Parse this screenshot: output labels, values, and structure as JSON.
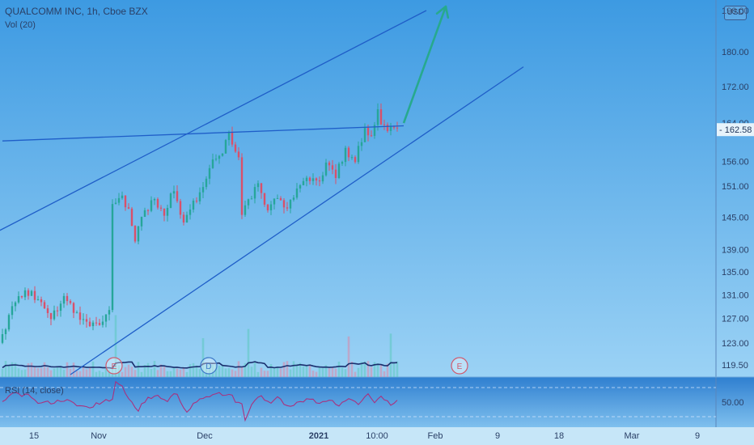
{
  "header": {
    "symbol_title": "QUALCOMM INC, 1h, Cboe BZX",
    "volume_label": "Vol (20)",
    "rsi_label": "RSI (14, close)",
    "currency_button": "USD"
  },
  "price_axis": {
    "ticks": [
      "190.00",
      "180.00",
      "172.00",
      "164.00",
      "156.00",
      "151.00",
      "145.00",
      "139.00",
      "135.00",
      "131.00",
      "127.00",
      "123.00",
      "119.50"
    ],
    "current_price_label": "162.58"
  },
  "rsi_axis": {
    "ticks": [
      "50.00"
    ]
  },
  "time_axis": {
    "ticks": [
      "15",
      "Nov",
      "Dec",
      "2021",
      "10:00",
      "Feb",
      "9",
      "18",
      "Mar",
      "9"
    ]
  },
  "event_markers": [
    "E",
    "D",
    "E"
  ],
  "colors": {
    "background_top": "#3d9ae2",
    "background_bottom": "#9bd2f5",
    "candle_up": "#26a69a",
    "candle_down": "#d9506a",
    "channel_line": "#1f5ec8",
    "projection_arrow": "#27a98e",
    "volume_ma": "#1a2f6e",
    "rsi_line": "#a8327f",
    "price_tag": "#e6f3fb"
  },
  "chart_data": {
    "type": "candlestick",
    "title": "QUALCOMM INC, 1h, Cboe BZX",
    "ylim": [
      118.5,
      190
    ],
    "y_scale": "log",
    "current_price": 162.58,
    "price_path": [
      {
        "t": 0,
        "p": 123.0
      },
      {
        "t": 4,
        "p": 128.5
      },
      {
        "t": 8,
        "p": 132.0
      },
      {
        "t": 12,
        "p": 130.0
      },
      {
        "t": 16,
        "p": 127.0
      },
      {
        "t": 20,
        "p": 130.5
      },
      {
        "t": 24,
        "p": 128.0
      },
      {
        "t": 28,
        "p": 125.5
      },
      {
        "t": 32,
        "p": 127.0
      },
      {
        "t": 34,
        "p": 128.5
      },
      {
        "t": 35,
        "p": 147.0
      },
      {
        "t": 37,
        "p": 149.5
      },
      {
        "t": 40,
        "p": 146.5
      },
      {
        "t": 42,
        "p": 141.0
      },
      {
        "t": 45,
        "p": 146.0
      },
      {
        "t": 48,
        "p": 148.5
      },
      {
        "t": 51,
        "p": 146.0
      },
      {
        "t": 54,
        "p": 150.5
      },
      {
        "t": 57,
        "p": 144.0
      },
      {
        "t": 60,
        "p": 147.5
      },
      {
        "t": 63,
        "p": 151.0
      },
      {
        "t": 66,
        "p": 155.5
      },
      {
        "t": 69,
        "p": 158.0
      },
      {
        "t": 71,
        "p": 161.5
      },
      {
        "t": 74,
        "p": 157.0
      },
      {
        "t": 75,
        "p": 145.0
      },
      {
        "t": 77,
        "p": 148.0
      },
      {
        "t": 80,
        "p": 151.0
      },
      {
        "t": 83,
        "p": 146.5
      },
      {
        "t": 86,
        "p": 149.5
      },
      {
        "t": 89,
        "p": 146.5
      },
      {
        "t": 92,
        "p": 150.0
      },
      {
        "t": 95,
        "p": 153.0
      },
      {
        "t": 98,
        "p": 151.5
      },
      {
        "t": 101,
        "p": 155.0
      },
      {
        "t": 104,
        "p": 153.5
      },
      {
        "t": 107,
        "p": 158.0
      },
      {
        "t": 110,
        "p": 156.0
      },
      {
        "t": 113,
        "p": 163.0
      },
      {
        "t": 115,
        "p": 160.5
      },
      {
        "t": 117,
        "p": 166.0
      },
      {
        "t": 120,
        "p": 162.0
      },
      {
        "t": 122,
        "p": 162.58
      }
    ],
    "rsi_ylim": [
      20,
      80
    ],
    "rsi_reference": 50,
    "annotations": [
      {
        "kind": "channel_upper",
        "from": {
          "t": -29,
          "p": 134.0
        },
        "to": {
          "t": 131,
          "p": 190.0
        }
      },
      {
        "kind": "channel_lower",
        "from": {
          "t": 21,
          "p": 118.0
        },
        "to": {
          "t": 161,
          "p": 176.5
        }
      },
      {
        "kind": "horizontal_resistance",
        "from": {
          "t": 0,
          "p": 160.2
        },
        "to": {
          "t": 124,
          "p": 163.4
        }
      },
      {
        "kind": "projection_arrow",
        "from": {
          "t": 124,
          "p": 164.0
        },
        "to": {
          "t": 137,
          "p": 191.0
        }
      }
    ]
  }
}
